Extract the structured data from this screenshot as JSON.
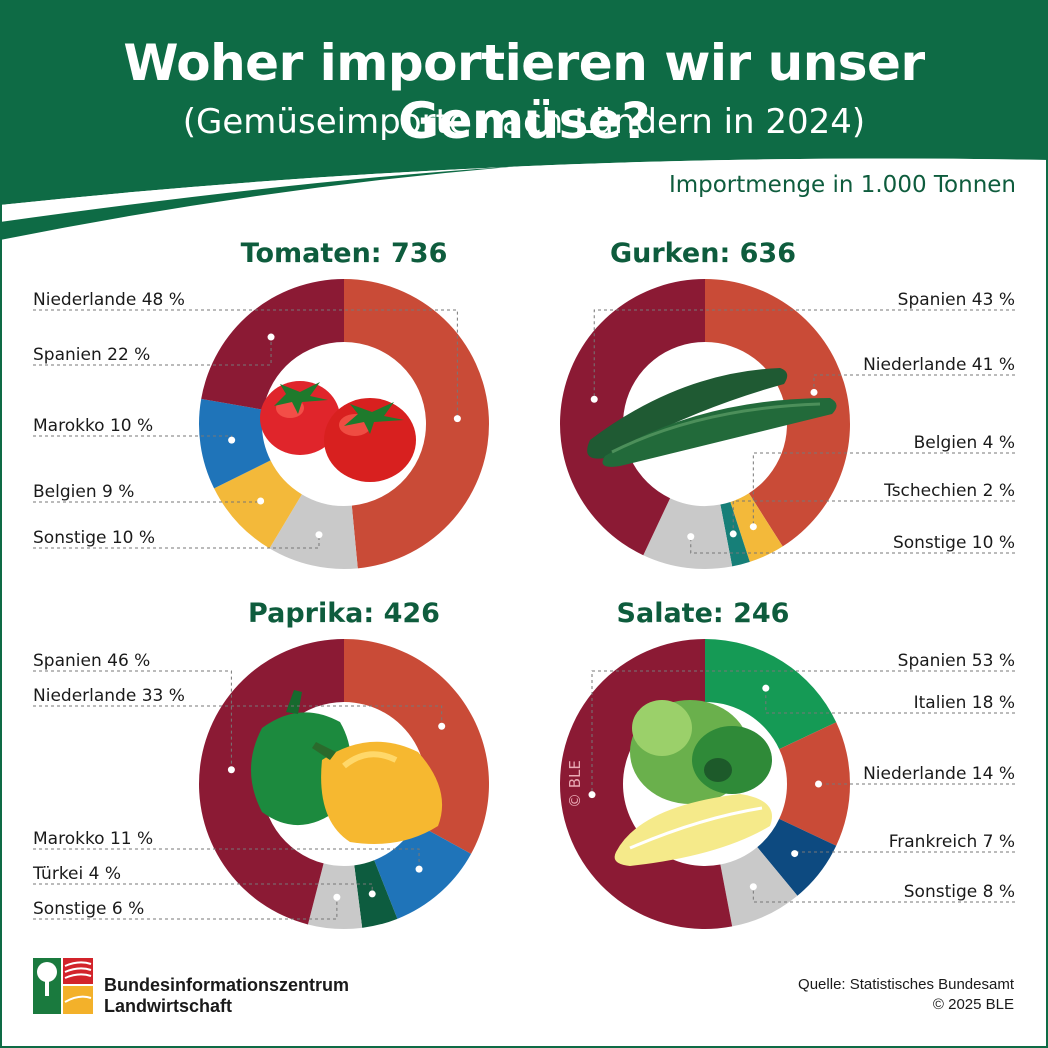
{
  "header": {
    "title": "Woher importieren wir unser Gemüse?",
    "subtitle": "(Gemüseimporte nach Ländern in 2024)"
  },
  "unit_note": "Importmenge in 1.000 Tonnen",
  "colors": {
    "green": "#0e6b45",
    "red": "#c94b37",
    "maroon": "#8b1a34",
    "blue": "#1f74b9",
    "yellow": "#f3b93a",
    "grey": "#c9c9c9",
    "teal": "#167f78",
    "darkgreen": "#0d5c3f",
    "leafgreen": "#159a55",
    "navy": "#0d4a80"
  },
  "chart_data": [
    {
      "type": "pie",
      "title": "Tomaten: 736",
      "slices": [
        {
          "label": "Niederlande 48 %",
          "value": 48,
          "color": "red"
        },
        {
          "label": "Sonstige 10 %",
          "value": 10,
          "color": "grey"
        },
        {
          "label": "Belgien 9 %",
          "value": 9,
          "color": "yellow"
        },
        {
          "label": "Marokko 10 %",
          "value": 10,
          "color": "blue"
        },
        {
          "label": "Spanien 22 %",
          "value": 22,
          "color": "maroon"
        }
      ]
    },
    {
      "type": "pie",
      "title": "Gurken: 636",
      "slices": [
        {
          "label": "Niederlande 41 %",
          "value": 41,
          "color": "red"
        },
        {
          "label": "Belgien 4 %",
          "value": 4,
          "color": "yellow"
        },
        {
          "label": "Tschechien 2 %",
          "value": 2,
          "color": "teal"
        },
        {
          "label": "Sonstige 10 %",
          "value": 10,
          "color": "grey"
        },
        {
          "label": "Spanien 43 %",
          "value": 43,
          "color": "maroon"
        }
      ]
    },
    {
      "type": "pie",
      "title": "Paprika: 426",
      "slices": [
        {
          "label": "Niederlande 33 %",
          "value": 33,
          "color": "red"
        },
        {
          "label": "Marokko 11 %",
          "value": 11,
          "color": "blue"
        },
        {
          "label": "Türkei 4 %",
          "value": 4,
          "color": "darkgreen"
        },
        {
          "label": "Sonstige 6 %",
          "value": 6,
          "color": "grey"
        },
        {
          "label": "Spanien 46 %",
          "value": 46,
          "color": "maroon"
        }
      ]
    },
    {
      "type": "pie",
      "title": "Salate: 246",
      "slices": [
        {
          "label": "Italien 18 %",
          "value": 18,
          "color": "leafgreen"
        },
        {
          "label": "Niederlande 14 %",
          "value": 14,
          "color": "red"
        },
        {
          "label": "Frankreich 7 %",
          "value": 7,
          "color": "navy"
        },
        {
          "label": "Sonstige 8 %",
          "value": 8,
          "color": "grey"
        },
        {
          "label": "Spanien 53 %",
          "value": 53,
          "color": "maroon"
        }
      ]
    }
  ],
  "footer": {
    "brand_line1": "Bundesinformationszentrum",
    "brand_line2": "Landwirtschaft",
    "source_line1": "Quelle: Statistisches Bundesamt",
    "source_line2": "© 2025 BLE",
    "watermark": "© BLE"
  }
}
